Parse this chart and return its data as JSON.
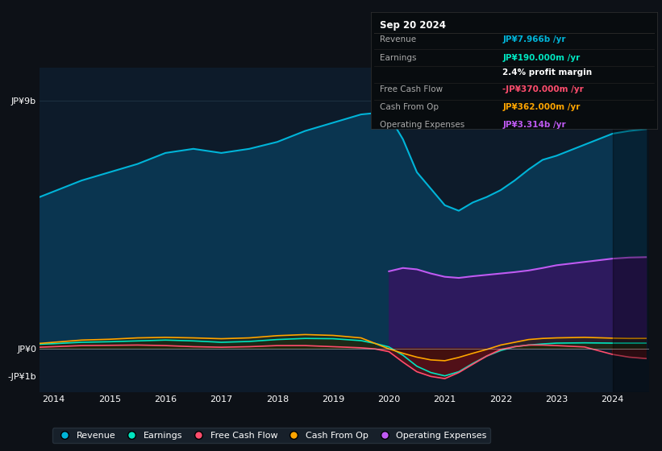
{
  "bg_color": "#0d1117",
  "plot_bg_color": "#0d1b2a",
  "tooltip_bg": "#080c0f",
  "years": [
    2013.75,
    2014.0,
    2014.5,
    2015.0,
    2015.5,
    2016.0,
    2016.5,
    2017.0,
    2017.5,
    2018.0,
    2018.5,
    2019.0,
    2019.5,
    2019.75,
    2020.0,
    2020.25,
    2020.5,
    2020.75,
    2021.0,
    2021.25,
    2021.5,
    2021.75,
    2022.0,
    2022.25,
    2022.5,
    2022.75,
    2023.0,
    2023.5,
    2024.0,
    2024.3,
    2024.6
  ],
  "revenue": [
    5.5,
    5.7,
    6.1,
    6.4,
    6.7,
    7.1,
    7.25,
    7.1,
    7.25,
    7.5,
    7.9,
    8.2,
    8.5,
    8.55,
    8.45,
    7.6,
    6.4,
    5.8,
    5.2,
    5.0,
    5.3,
    5.5,
    5.75,
    6.1,
    6.5,
    6.85,
    7.0,
    7.4,
    7.8,
    7.9,
    7.966
  ],
  "earnings": [
    0.15,
    0.17,
    0.22,
    0.24,
    0.27,
    0.3,
    0.27,
    0.22,
    0.25,
    0.32,
    0.36,
    0.35,
    0.28,
    0.18,
    0.05,
    -0.25,
    -0.65,
    -0.88,
    -1.0,
    -0.85,
    -0.55,
    -0.28,
    -0.08,
    0.06,
    0.12,
    0.16,
    0.19,
    0.2,
    0.19,
    0.19,
    0.19
  ],
  "free_cash_flow": [
    0.04,
    0.06,
    0.1,
    0.11,
    0.12,
    0.1,
    0.06,
    0.04,
    0.06,
    0.1,
    0.1,
    0.06,
    0.02,
    -0.02,
    -0.12,
    -0.5,
    -0.85,
    -1.02,
    -1.1,
    -0.88,
    -0.58,
    -0.28,
    -0.04,
    0.06,
    0.12,
    0.12,
    0.1,
    0.05,
    -0.22,
    -0.32,
    -0.37
  ],
  "cash_from_op": [
    0.18,
    0.22,
    0.3,
    0.33,
    0.38,
    0.4,
    0.38,
    0.35,
    0.38,
    0.46,
    0.5,
    0.47,
    0.38,
    0.18,
    -0.02,
    -0.18,
    -0.32,
    -0.42,
    -0.45,
    -0.33,
    -0.18,
    -0.04,
    0.12,
    0.22,
    0.32,
    0.36,
    0.38,
    0.4,
    0.37,
    0.36,
    0.362
  ],
  "operating_expenses": [
    0.0,
    0.0,
    0.0,
    0.0,
    0.0,
    0.0,
    0.0,
    0.0,
    0.0,
    0.0,
    0.0,
    0.0,
    0.0,
    0.0,
    2.8,
    2.92,
    2.87,
    2.72,
    2.6,
    2.56,
    2.62,
    2.67,
    2.72,
    2.77,
    2.83,
    2.92,
    3.02,
    3.14,
    3.26,
    3.3,
    3.314
  ],
  "revenue_line_color": "#00b4d8",
  "earnings_line_color": "#00e5c0",
  "fcf_line_color": "#ff4d6d",
  "cashop_line_color": "#ffa500",
  "opex_line_color": "#bf5af2",
  "revenue_fill": "#0a3550",
  "opex_fill": "#2d1a5e",
  "earnings_pos_fill": "#0d3028",
  "earnings_neg_fill": "#4a1020",
  "fcf_pos_fill": "#1a2808",
  "fcf_neg_fill": "#5a1015",
  "cashop_pos_fill": "#2a2508",
  "cashop_neg_fill": "#3a1008",
  "ylim_top": 10.2,
  "ylim_bottom": -1.6,
  "xtick_years": [
    2014,
    2015,
    2016,
    2017,
    2018,
    2019,
    2020,
    2021,
    2022,
    2023,
    2024
  ],
  "tooltip_date": "Sep 20 2024",
  "tooltip_rows": [
    {
      "label": "Revenue",
      "value": "JP¥7.966b /yr",
      "vcolor": "#00b4d8"
    },
    {
      "label": "Earnings",
      "value": "JP¥190.000m /yr",
      "vcolor": "#00e5c0"
    },
    {
      "label": "",
      "value": "2.4% profit margin",
      "vcolor": "#ffffff"
    },
    {
      "label": "Free Cash Flow",
      "value": "-JP¥370.000m /yr",
      "vcolor": "#ff4d6d"
    },
    {
      "label": "Cash From Op",
      "value": "JP¥362.000m /yr",
      "vcolor": "#ffa500"
    },
    {
      "label": "Operating Expenses",
      "value": "JP¥3.314b /yr",
      "vcolor": "#bf5af2"
    }
  ],
  "legend_labels": [
    "Revenue",
    "Earnings",
    "Free Cash Flow",
    "Cash From Op",
    "Operating Expenses"
  ],
  "legend_colors": [
    "#00b4d8",
    "#00e5c0",
    "#ff4d6d",
    "#ffa500",
    "#bf5af2"
  ]
}
